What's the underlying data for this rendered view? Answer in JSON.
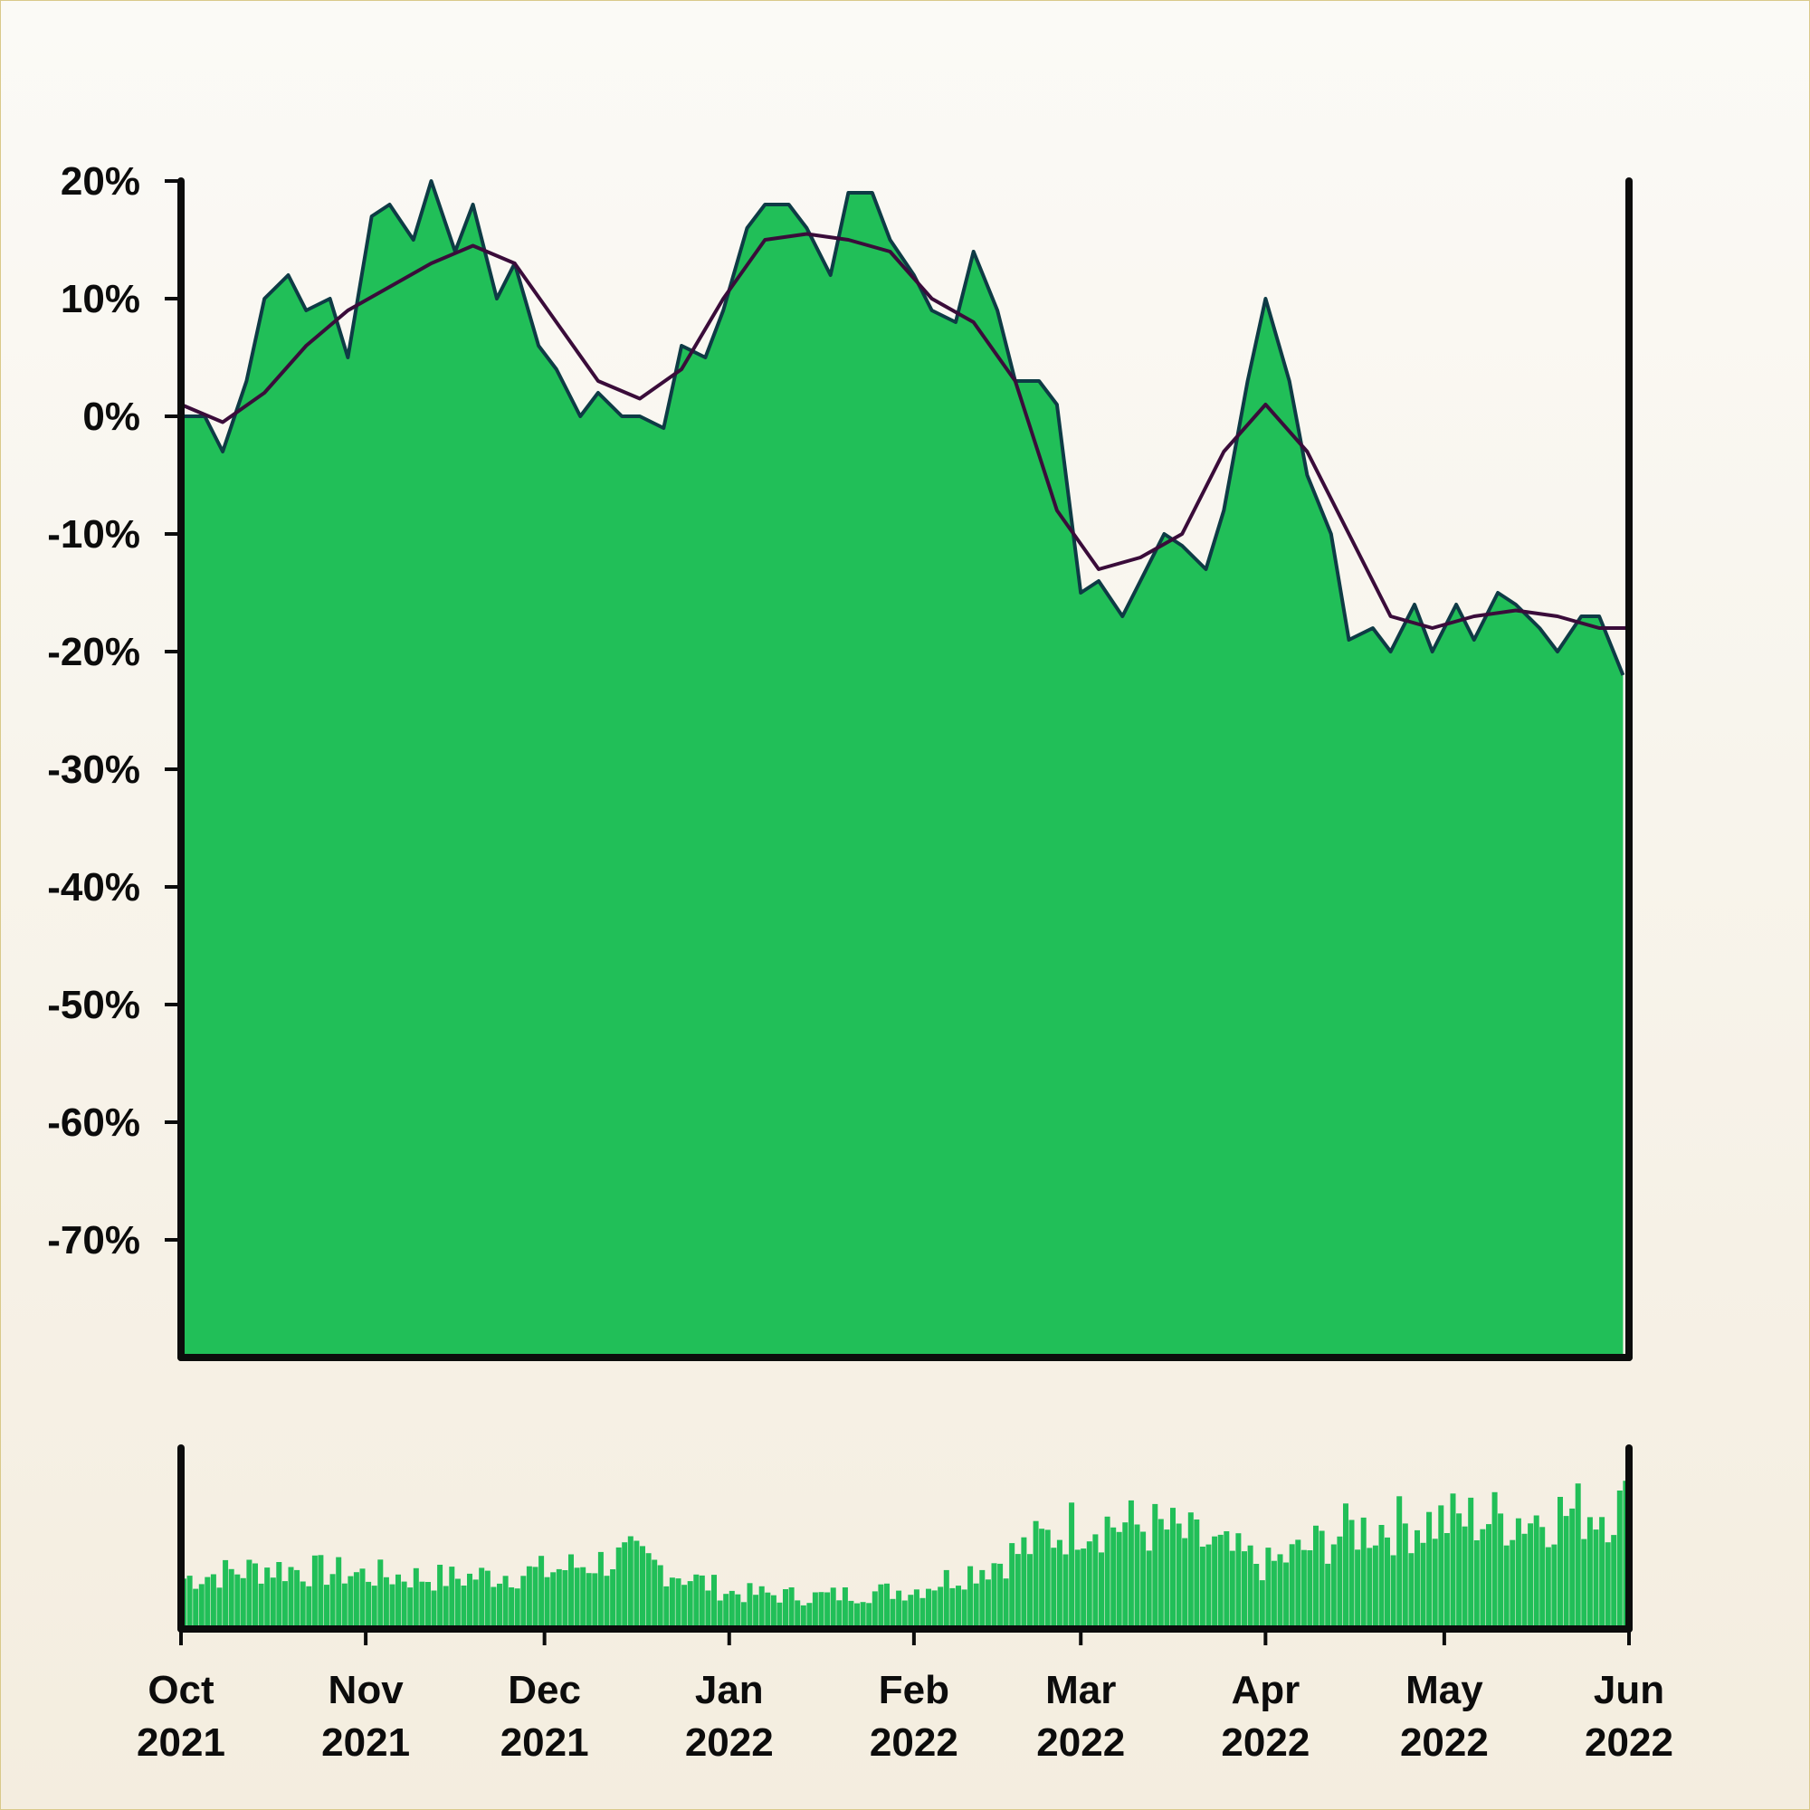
{
  "chart_data": {
    "type": "area",
    "title": "",
    "xlabel": "",
    "ylabel": "",
    "colors": {
      "area_fill": "#21bf58",
      "price_line": "#0e3b45",
      "moving_average": "#3a0c3a",
      "volume": "#21bf58",
      "axes": "#0c0c0c"
    },
    "grid": false,
    "legend": "none",
    "x_axis": {
      "start": "2021-10-01",
      "end": "2022-06-01",
      "ticks": [
        {
          "date": "2021-10-01",
          "month": "Oct",
          "year": "2021"
        },
        {
          "date": "2021-11-01",
          "month": "Nov",
          "year": "2021"
        },
        {
          "date": "2021-12-01",
          "month": "Dec",
          "year": "2021"
        },
        {
          "date": "2022-01-01",
          "month": "Jan",
          "year": "2022"
        },
        {
          "date": "2022-02-01",
          "month": "Feb",
          "year": "2022"
        },
        {
          "date": "2022-03-01",
          "month": "Mar",
          "year": "2022"
        },
        {
          "date": "2022-04-01",
          "month": "Apr",
          "year": "2022"
        },
        {
          "date": "2022-05-01",
          "month": "May",
          "year": "2022"
        },
        {
          "date": "2022-06-01",
          "month": "Jun",
          "year": "2022"
        }
      ]
    },
    "y_axis": {
      "unit": "percent",
      "ylim": [
        -80,
        20
      ],
      "ticks": [
        20,
        10,
        0,
        -10,
        -20,
        -30,
        -40,
        -50,
        -60,
        -70
      ],
      "tick_labels": [
        "20%",
        "10%",
        "0%",
        "-10%",
        "-20%",
        "-30%",
        "-40%",
        "-50%",
        "-60%",
        "-70%"
      ]
    },
    "series": [
      {
        "kind": "price",
        "x": [
          "2021-10-01",
          "2021-10-05",
          "2021-10-08",
          "2021-10-12",
          "2021-10-15",
          "2021-10-19",
          "2021-10-22",
          "2021-10-26",
          "2021-10-29",
          "2021-11-02",
          "2021-11-05",
          "2021-11-09",
          "2021-11-12",
          "2021-11-16",
          "2021-11-19",
          "2021-11-23",
          "2021-11-26",
          "2021-11-30",
          "2021-12-03",
          "2021-12-07",
          "2021-12-10",
          "2021-12-14",
          "2021-12-17",
          "2021-12-21",
          "2021-12-24",
          "2021-12-28",
          "2021-12-31",
          "2022-01-04",
          "2022-01-07",
          "2022-01-11",
          "2022-01-14",
          "2022-01-18",
          "2022-01-21",
          "2022-01-25",
          "2022-01-28",
          "2022-02-01",
          "2022-02-04",
          "2022-02-08",
          "2022-02-11",
          "2022-02-15",
          "2022-02-18",
          "2022-02-22",
          "2022-02-25",
          "2022-03-01",
          "2022-03-04",
          "2022-03-08",
          "2022-03-11",
          "2022-03-15",
          "2022-03-18",
          "2022-03-22",
          "2022-03-25",
          "2022-03-29",
          "2022-04-01",
          "2022-04-05",
          "2022-04-08",
          "2022-04-12",
          "2022-04-15",
          "2022-04-19",
          "2022-04-22",
          "2022-04-26",
          "2022-04-29",
          "2022-05-03",
          "2022-05-06",
          "2022-05-10",
          "2022-05-13",
          "2022-05-17",
          "2022-05-20",
          "2022-05-24",
          "2022-05-27",
          "2022-05-31"
        ],
        "values": [
          0,
          0,
          -3,
          3,
          10,
          12,
          9,
          10,
          5,
          17,
          18,
          15,
          20,
          14,
          18,
          10,
          13,
          6,
          4,
          0,
          2,
          0,
          0,
          -1,
          6,
          5,
          9,
          16,
          18,
          18,
          16,
          12,
          19,
          19,
          15,
          12,
          9,
          8,
          14,
          9,
          3,
          3,
          1,
          -15,
          -14,
          -17,
          -14,
          -10,
          -11,
          -13,
          -8,
          3,
          10,
          3,
          -5,
          -10,
          -19,
          -18,
          -20,
          -16,
          -20,
          -16,
          -19,
          -15,
          -16,
          -18,
          -20,
          -17,
          -17,
          -22
        ]
      },
      {
        "kind": "moving_average",
        "x": [
          "2021-10-01",
          "2021-10-08",
          "2021-10-15",
          "2021-10-22",
          "2021-10-29",
          "2021-11-05",
          "2021-11-12",
          "2021-11-19",
          "2021-11-26",
          "2021-12-03",
          "2021-12-10",
          "2021-12-17",
          "2021-12-24",
          "2021-12-31",
          "2022-01-07",
          "2022-01-14",
          "2022-01-21",
          "2022-01-28",
          "2022-02-04",
          "2022-02-11",
          "2022-02-18",
          "2022-02-25",
          "2022-03-04",
          "2022-03-11",
          "2022-03-18",
          "2022-03-25",
          "2022-04-01",
          "2022-04-08",
          "2022-04-15",
          "2022-04-22",
          "2022-04-29",
          "2022-05-06",
          "2022-05-13",
          "2022-05-20",
          "2022-05-27",
          "2022-06-01"
        ],
        "values": [
          1,
          -0.5,
          2,
          6,
          9,
          11,
          13,
          14.5,
          13,
          8,
          3,
          1.5,
          4,
          10,
          15,
          15.5,
          15,
          14,
          10,
          8,
          3,
          -8,
          -13,
          -12,
          -10,
          -3,
          1,
          -3,
          -10,
          -17,
          -18,
          -17,
          -16.5,
          -17,
          -18,
          -18
        ]
      }
    ],
    "volume": {
      "x": [
        "2021-10-01",
        "2021-10-15",
        "2021-11-01",
        "2021-11-15",
        "2021-12-01",
        "2021-12-15",
        "2022-01-01",
        "2022-01-15",
        "2022-02-01",
        "2022-02-15",
        "2022-03-01",
        "2022-03-15",
        "2022-04-01",
        "2022-04-15",
        "2022-05-01",
        "2022-05-15",
        "2022-06-01"
      ],
      "values": [
        0.28,
        0.34,
        0.3,
        0.28,
        0.32,
        0.4,
        0.2,
        0.18,
        0.22,
        0.38,
        0.6,
        0.55,
        0.35,
        0.55,
        0.6,
        0.62,
        0.68
      ]
    }
  }
}
